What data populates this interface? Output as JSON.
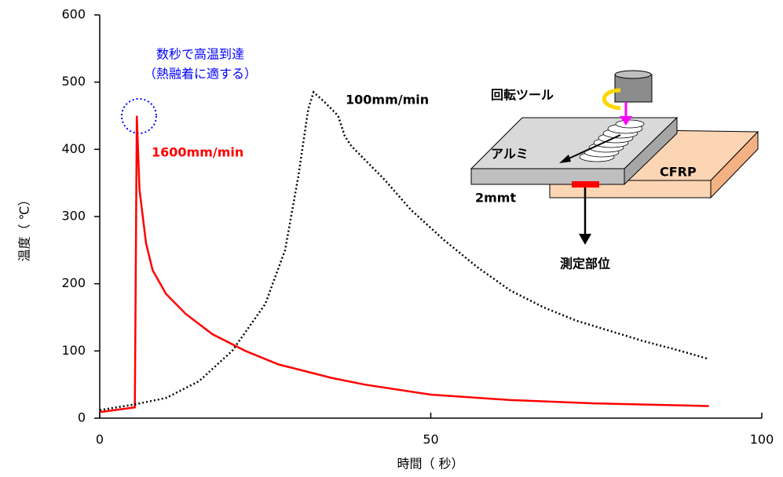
{
  "chart_data": {
    "type": "line",
    "xlabel": "時間（ 秒）",
    "ylabel": "温度（ ℃）",
    "xlim": [
      0,
      100
    ],
    "xticks": [
      0,
      50,
      100
    ],
    "ylim": [
      0,
      600
    ],
    "yticks": [
      0,
      100,
      200,
      300,
      400,
      500,
      600
    ],
    "annotations": [
      "数秒で高温到達",
      "（熱融着に適する）"
    ],
    "diagram_labels": [
      "回転ツール",
      "アルミ",
      "CFRP",
      "2mmt",
      "測定部位"
    ],
    "series": [
      {
        "name": "1600mm/min",
        "color": "#ff0000",
        "style": "solid",
        "x": [
          0,
          5.3,
          5.6,
          6,
          7,
          8,
          10,
          13,
          17,
          22,
          27,
          35,
          40,
          50,
          62,
          75,
          92
        ],
        "values": [
          9,
          16,
          450,
          340,
          260,
          220,
          185,
          155,
          125,
          100,
          80,
          60,
          50,
          35,
          27,
          22,
          18
        ]
      },
      {
        "name": "100mm/min",
        "color": "#000000",
        "style": "dotted",
        "x": [
          0,
          5,
          10,
          15,
          20,
          25,
          28,
          30,
          31.5,
          32.3,
          34,
          36,
          37,
          38,
          40,
          43,
          47,
          52,
          57,
          62,
          67,
          72,
          77,
          82,
          87,
          92
        ],
        "values": [
          12,
          20,
          30,
          55,
          100,
          170,
          250,
          360,
          460,
          485,
          470,
          450,
          420,
          405,
          385,
          355,
          310,
          265,
          225,
          190,
          165,
          145,
          130,
          115,
          102,
          88
        ]
      }
    ]
  }
}
